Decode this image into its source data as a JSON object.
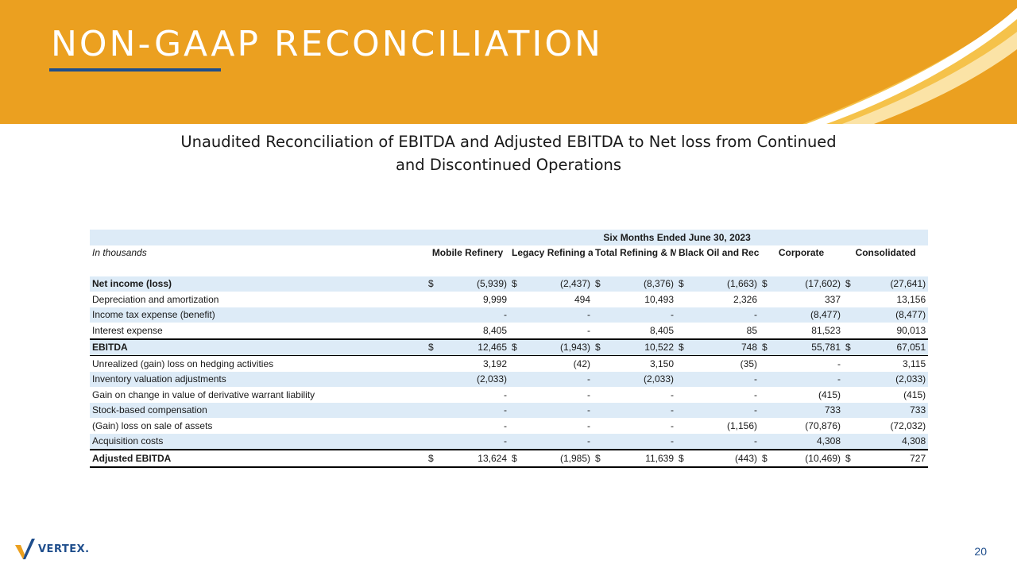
{
  "slide": {
    "title": "NON-GAAP RECONCILIATION",
    "subtitle_line1": "Unaudited Reconciliation of EBITDA and Adjusted EBITDA to Net loss from Continued",
    "subtitle_line2": "and Discontinued Operations",
    "page_number": "20",
    "logo_text": "VERTEX.",
    "colors": {
      "header": "#EBA020",
      "accent": "#1F4E8C",
      "row_shade": "#DDEBF7"
    }
  },
  "table": {
    "period": "Six Months Ended June 30, 2023",
    "units_label": "In thousands",
    "columns": [
      "Mobile Refinery",
      "Legacy Refining and Marketing",
      "Total Refining & Marketing",
      "Black Oil and Recovery",
      "Corporate",
      "Consolidated"
    ],
    "currency_symbol": "$",
    "rows": [
      {
        "label": "Net income (loss)",
        "values": [
          "(5,939)",
          "(2,437)",
          "(8,376)",
          "(1,663)",
          "(17,602)",
          "(27,641)"
        ]
      },
      {
        "label": "Depreciation and amortization",
        "values": [
          "9,999",
          "494",
          "10,493",
          "2,326",
          "337",
          "13,156"
        ]
      },
      {
        "label": "Income tax expense (benefit)",
        "values": [
          "-",
          "-",
          "-",
          "-",
          "(8,477)",
          "(8,477)"
        ]
      },
      {
        "label": "Interest expense",
        "values": [
          "8,405",
          "-",
          "8,405",
          "85",
          "81,523",
          "90,013"
        ]
      },
      {
        "label": "EBITDA",
        "values": [
          "12,465",
          "(1,943)",
          "10,522",
          "748",
          "55,781",
          "67,051"
        ]
      },
      {
        "label": "Unrealized (gain) loss on hedging activities",
        "values": [
          "3,192",
          "(42)",
          "3,150",
          "(35)",
          "-",
          "3,115"
        ]
      },
      {
        "label": "Inventory valuation adjustments",
        "values": [
          "(2,033)",
          "-",
          "(2,033)",
          "-",
          "-",
          "(2,033)"
        ]
      },
      {
        "label": "Gain on change in value of derivative warrant liability",
        "values": [
          "-",
          "-",
          "-",
          "-",
          "(415)",
          "(415)"
        ]
      },
      {
        "label": "Stock-based compensation",
        "values": [
          "-",
          "-",
          "-",
          "-",
          "733",
          "733"
        ]
      },
      {
        "label": "(Gain) loss on sale of assets",
        "values": [
          "-",
          "-",
          "-",
          "(1,156)",
          "(70,876)",
          "(72,032)"
        ]
      },
      {
        "label": "Acquisition costs",
        "values": [
          "-",
          "-",
          "-",
          "-",
          "4,308",
          "4,308"
        ]
      },
      {
        "label": "Adjusted EBITDA",
        "values": [
          "13,624",
          "(1,985)",
          "11,639",
          "(443)",
          "(10,469)",
          "727"
        ]
      }
    ]
  }
}
